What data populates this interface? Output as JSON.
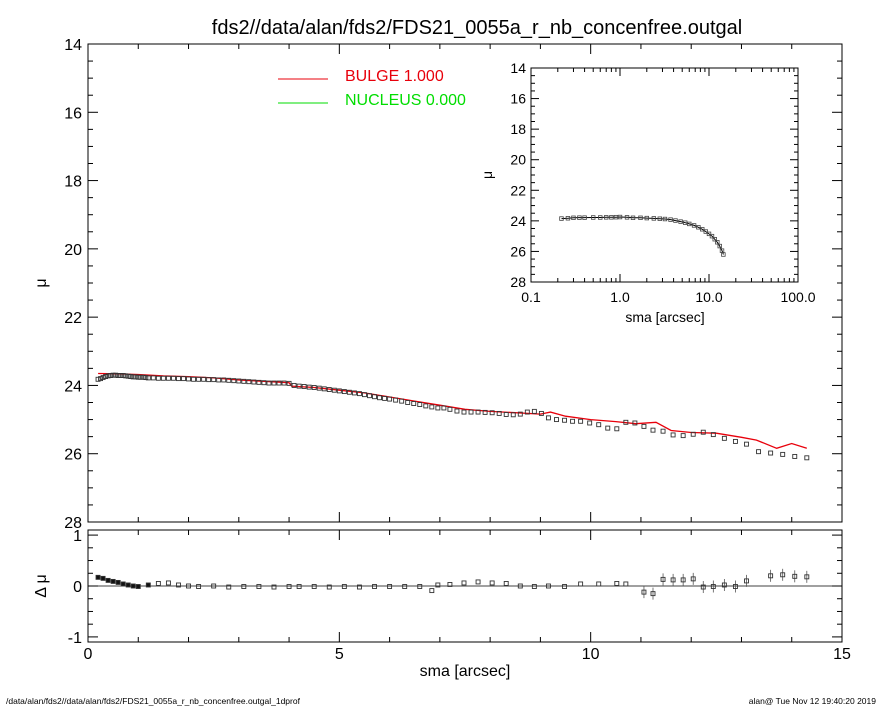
{
  "title": "fds2//data/alan/fds2/FDS21_0055a_r_nb_concenfree.outgal",
  "footer": {
    "left": "/data/alan/fds2//data/alan/fds2/FDS21_0055a_r_nb_concenfree.outgal_1dprof",
    "right": "alan@  Tue Nov 12 19:40:20 2019"
  },
  "colors": {
    "bulge": "#e8000b",
    "nucleus": "#00dd00",
    "points": "#000000"
  },
  "chart_data": [
    {
      "type": "scatter",
      "panel": "main",
      "xlabel": "",
      "ylabel": "μ",
      "xlim": [
        0,
        15
      ],
      "ylim": [
        28,
        14
      ],
      "yticks": [
        14,
        16,
        18,
        20,
        22,
        24,
        26,
        28
      ],
      "yticklabels": [
        "14",
        "16",
        "18",
        "20",
        "22",
        "24",
        "26",
        "28"
      ],
      "legend": {
        "placement": "top-center",
        "entries": [
          {
            "name": "BULGE",
            "label": "BULGE  1.000",
            "color": "#e8000b"
          },
          {
            "name": "NUCLEUS",
            "label": "NUCLEUS  0.000",
            "color": "#00dd00"
          }
        ]
      },
      "series": [
        {
          "name": "data",
          "style": "open-squares",
          "x": [
            0.2,
            0.25,
            0.3,
            0.35,
            0.4,
            0.45,
            0.5,
            0.55,
            0.6,
            0.65,
            0.7,
            0.75,
            0.8,
            0.85,
            0.9,
            0.95,
            1.0,
            1.05,
            1.1,
            1.15,
            1.2,
            1.3,
            1.4,
            1.5,
            1.6,
            1.7,
            1.8,
            1.9,
            2.0,
            2.1,
            2.2,
            2.3,
            2.4,
            2.5,
            2.6,
            2.7,
            2.8,
            2.9,
            3.0,
            3.1,
            3.2,
            3.3,
            3.4,
            3.5,
            3.6,
            3.7,
            3.8,
            3.9,
            4.0,
            4.1,
            4.2,
            4.3,
            4.4,
            4.5,
            4.6,
            4.7,
            4.8,
            4.9,
            5.0,
            5.1,
            5.2,
            5.3,
            5.4,
            5.5,
            5.6,
            5.7,
            5.8,
            5.9,
            6.0,
            6.12,
            6.24,
            6.36,
            6.48,
            6.6,
            6.72,
            6.84,
            6.96,
            7.08,
            7.2,
            7.34,
            7.48,
            7.62,
            7.76,
            7.9,
            8.04,
            8.18,
            8.32,
            8.46,
            8.6,
            8.74,
            8.88,
            9.02,
            9.16,
            9.32,
            9.48,
            9.64,
            9.8,
            9.98,
            10.16,
            10.34,
            10.52,
            10.7,
            10.88,
            11.06,
            11.24,
            11.44,
            11.64,
            11.84,
            12.04,
            12.24,
            12.44,
            12.66,
            12.88,
            13.1,
            13.34,
            13.58,
            13.82,
            14.06,
            14.3
          ],
          "y": [
            23.82,
            23.8,
            23.77,
            23.74,
            23.72,
            23.71,
            23.7,
            23.7,
            23.71,
            23.71,
            23.71,
            23.72,
            23.73,
            23.74,
            23.75,
            23.75,
            23.76,
            23.76,
            23.76,
            23.77,
            23.78,
            23.78,
            23.79,
            23.79,
            23.79,
            23.79,
            23.8,
            23.8,
            23.81,
            23.82,
            23.82,
            23.82,
            23.83,
            23.83,
            23.84,
            23.84,
            23.85,
            23.86,
            23.87,
            23.88,
            23.89,
            23.9,
            23.91,
            23.92,
            23.93,
            23.93,
            23.93,
            23.93,
            23.94,
            24.0,
            24.02,
            24.03,
            24.05,
            24.06,
            24.08,
            24.1,
            24.12,
            24.14,
            24.16,
            24.18,
            24.2,
            24.22,
            24.24,
            24.27,
            24.3,
            24.33,
            24.36,
            24.38,
            24.4,
            24.43,
            24.46,
            24.5,
            24.53,
            24.56,
            24.6,
            24.63,
            24.66,
            24.66,
            24.7,
            24.75,
            24.78,
            24.78,
            24.78,
            24.79,
            24.8,
            24.82,
            24.85,
            24.86,
            24.84,
            24.78,
            24.76,
            24.82,
            24.95,
            25.0,
            25.02,
            25.05,
            25.05,
            25.1,
            25.15,
            25.25,
            25.27,
            25.08,
            25.1,
            25.2,
            25.31,
            25.34,
            25.45,
            25.47,
            25.43,
            25.37,
            25.44,
            25.55,
            25.64,
            25.72,
            25.94,
            25.98,
            26.02,
            26.08,
            26.12
          ]
        },
        {
          "name": "BULGE",
          "style": "line",
          "color": "#e8000b",
          "x": [
            0.2,
            0.6,
            1.0,
            1.5,
            2.0,
            2.5,
            3.0,
            3.5,
            4.0,
            4.05,
            4.5,
            5.0,
            5.5,
            6.0,
            6.5,
            7.0,
            7.5,
            8.0,
            8.5,
            9.0,
            9.2,
            9.5,
            10.0,
            10.5,
            10.9,
            11.3,
            11.6,
            12.0,
            12.5,
            13.0,
            13.3,
            13.7,
            14.0,
            14.3
          ],
          "y": [
            23.65,
            23.66,
            23.68,
            23.72,
            23.74,
            23.78,
            23.84,
            23.88,
            23.92,
            24.02,
            24.06,
            24.14,
            24.22,
            24.34,
            24.46,
            24.58,
            24.7,
            24.76,
            24.8,
            24.84,
            24.78,
            24.9,
            25.0,
            25.06,
            25.12,
            25.08,
            25.32,
            25.38,
            25.4,
            25.52,
            25.6,
            25.84,
            25.7,
            25.84
          ]
        }
      ]
    },
    {
      "type": "scatter",
      "panel": "residual",
      "xlabel": "sma [arcsec]",
      "ylabel": "Δ μ",
      "xlim": [
        0,
        15
      ],
      "ylim": [
        -1.1,
        1.1
      ],
      "xticks": [
        0,
        5,
        10,
        15
      ],
      "xticklabels": [
        "0",
        "5",
        "10",
        "15"
      ],
      "yticks": [
        -1,
        0,
        1
      ],
      "yticklabels": [
        "-1",
        "0",
        "1"
      ],
      "series": [
        {
          "name": "residual",
          "x": [
            0.2,
            0.3,
            0.4,
            0.5,
            0.6,
            0.7,
            0.8,
            0.9,
            1.0,
            1.2,
            1.4,
            1.6,
            1.8,
            2.0,
            2.2,
            2.5,
            2.8,
            3.1,
            3.4,
            3.7,
            4.0,
            4.2,
            4.5,
            4.8,
            5.1,
            5.4,
            5.7,
            6.0,
            6.3,
            6.6,
            6.84,
            6.96,
            7.2,
            7.48,
            7.76,
            8.04,
            8.32,
            8.6,
            8.88,
            9.16,
            9.48,
            9.8,
            10.16,
            10.52,
            10.7,
            11.06,
            11.24,
            11.44,
            11.64,
            11.84,
            12.04,
            12.24,
            12.44,
            12.66,
            12.88,
            13.1,
            13.58,
            13.82,
            14.06,
            14.3
          ],
          "y": [
            0.17,
            0.15,
            0.11,
            0.09,
            0.07,
            0.04,
            0.02,
            0.0,
            -0.01,
            0.02,
            0.05,
            0.06,
            0.02,
            0.0,
            -0.01,
            0.0,
            -0.02,
            -0.01,
            -0.01,
            -0.02,
            -0.01,
            -0.01,
            -0.01,
            -0.02,
            -0.01,
            -0.02,
            -0.01,
            -0.01,
            -0.01,
            -0.01,
            -0.09,
            0.02,
            0.03,
            0.06,
            0.08,
            0.06,
            0.05,
            0.0,
            -0.01,
            0.0,
            -0.01,
            0.04,
            0.04,
            0.05,
            0.04,
            -0.12,
            -0.15,
            0.13,
            0.12,
            0.12,
            0.14,
            -0.02,
            -0.01,
            0.02,
            -0.01,
            0.1,
            0.2,
            0.22,
            0.19,
            0.18
          ]
        }
      ]
    },
    {
      "type": "scatter",
      "panel": "inset",
      "xscale": "log",
      "xlabel": "sma [arcsec]",
      "ylabel": "μ",
      "xlim": [
        0.1,
        100.0
      ],
      "ylim": [
        28,
        14
      ],
      "xticks": [
        0.1,
        1.0,
        10.0,
        100.0
      ],
      "xticklabels": [
        "0.1",
        "1.0",
        "10.0",
        "100.0"
      ],
      "yticks": [
        14,
        16,
        18,
        20,
        22,
        24,
        26,
        28
      ],
      "yticklabels": [
        "14",
        "16",
        "18",
        "20",
        "22",
        "24",
        "26",
        "28"
      ],
      "series": [
        {
          "name": "data",
          "x": [
            0.22,
            0.26,
            0.3,
            0.35,
            0.4,
            0.5,
            0.6,
            0.7,
            0.8,
            0.9,
            1.0,
            1.2,
            1.4,
            1.7,
            2.0,
            2.4,
            2.8,
            3.2,
            3.7,
            4.2,
            4.8,
            5.4,
            6.0,
            6.8,
            7.6,
            8.4,
            9.2,
            10.0,
            10.8,
            11.6,
            12.4,
            13.2,
            14.0,
            14.5
          ],
          "y": [
            23.85,
            23.83,
            23.8,
            23.79,
            23.79,
            23.78,
            23.78,
            23.77,
            23.77,
            23.76,
            23.75,
            23.77,
            23.8,
            23.8,
            23.82,
            23.84,
            23.86,
            23.88,
            23.92,
            23.98,
            24.05,
            24.12,
            24.2,
            24.3,
            24.42,
            24.55,
            24.7,
            24.85,
            25.0,
            25.2,
            25.4,
            25.65,
            25.95,
            26.2
          ]
        }
      ]
    }
  ]
}
